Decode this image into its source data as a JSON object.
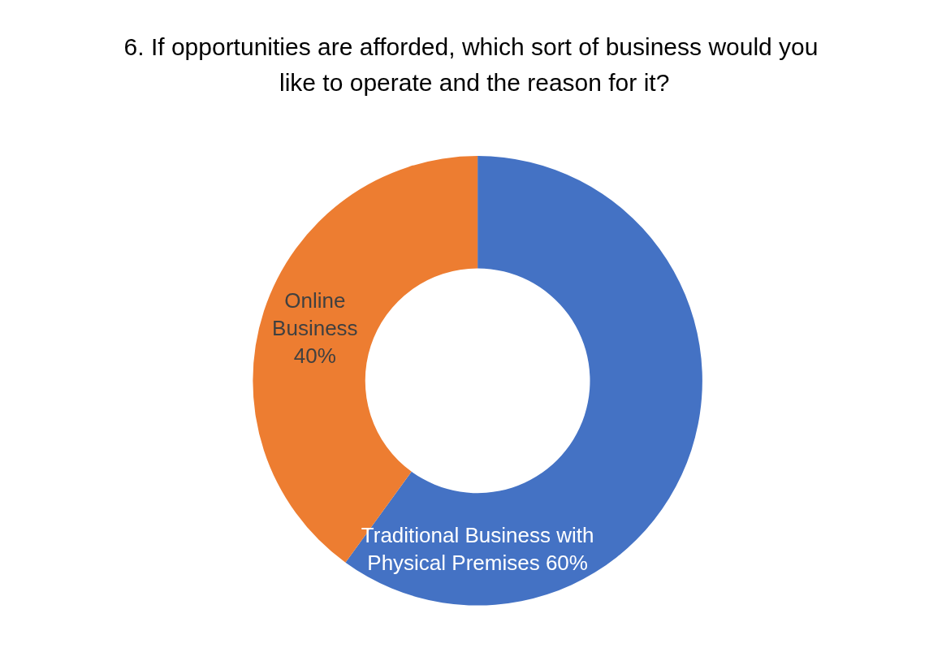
{
  "chart_data": {
    "type": "donut",
    "title": "6. If opportunities are afforded, which sort of business would you like to operate and the reason for it?",
    "categories": [
      "Traditional Business with Physical Premises",
      "Online Business"
    ],
    "values": [
      60,
      40
    ],
    "colors": [
      "#4472c4",
      "#ed7d31"
    ],
    "value_labels": [
      "60%",
      "40%"
    ]
  }
}
